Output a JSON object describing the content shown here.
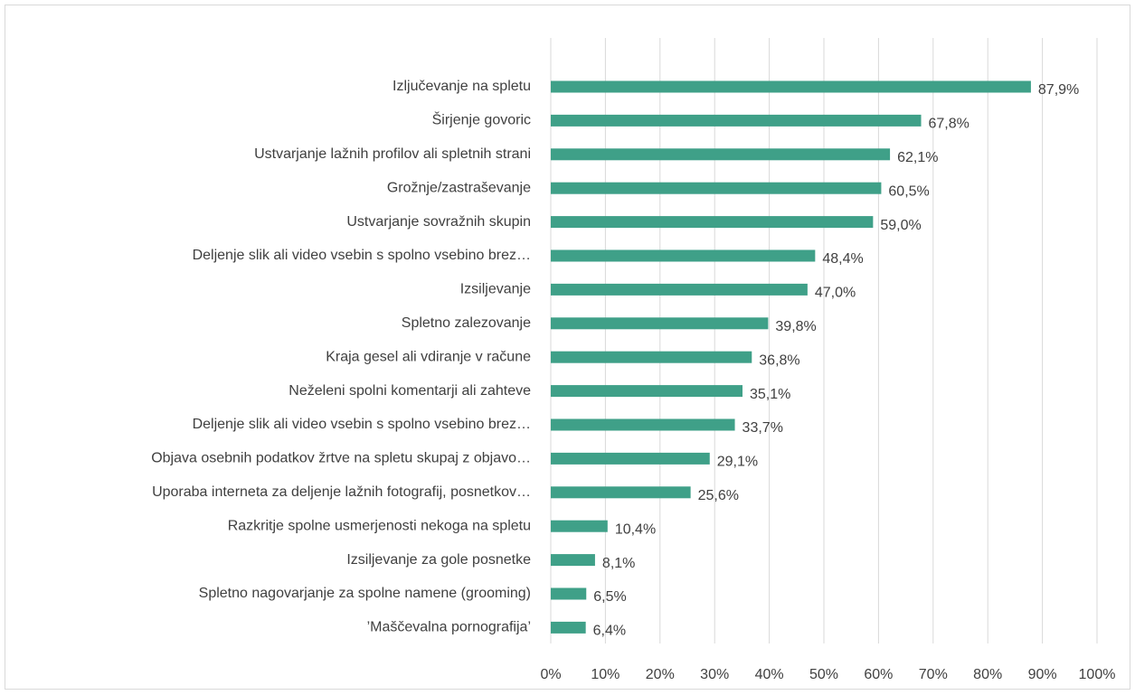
{
  "chart_data": {
    "type": "bar",
    "orientation": "horizontal",
    "color": "#3fa088",
    "grid": true,
    "categories": [
      "Izljučevanje na spletu",
      "Širjenje govoric",
      "Ustvarjanje lažnih profilov ali spletnih strani",
      "Grožnje/zastraševanje",
      "Ustvarjanje sovražnih skupin",
      "Deljenje slik ali video vsebin s spolno vsebino brez…",
      "Izsiljevanje",
      "Spletno zalezovanje",
      "Kraja gesel ali vdiranje v račune",
      "Neželeni spolni komentarji ali zahteve",
      "Deljenje slik ali video vsebin s spolno vsebino brez…",
      "Objava osebnih podatkov žrtve na spletu skupaj z objavo…",
      "Uporaba interneta za deljenje lažnih fotografij, posnetkov…",
      "Razkritje spolne usmerjenosti nekoga na spletu",
      "Izsiljevanje za gole posnetke",
      "Spletno nagovarjanje za spolne namene (grooming)",
      "’Maščevalna pornografija’"
    ],
    "values": [
      87.9,
      67.8,
      62.1,
      60.5,
      59.0,
      48.4,
      47.0,
      39.8,
      36.8,
      35.1,
      33.7,
      29.1,
      25.6,
      10.4,
      8.1,
      6.5,
      6.4
    ],
    "value_labels": [
      "87,9%",
      "67,8%",
      "62,1%",
      "60,5%",
      "59,0%",
      "48,4%",
      "47,0%",
      "39,8%",
      "36,8%",
      "35,1%",
      "33,7%",
      "29,1%",
      "25,6%",
      "10,4%",
      "8,1%",
      "6,5%",
      "6,4%"
    ],
    "xlim": [
      0,
      100
    ],
    "xticks": [
      {
        "value": 0,
        "label": "0%"
      },
      {
        "value": 10,
        "label": "10%"
      },
      {
        "value": 20,
        "label": "20%"
      },
      {
        "value": 30,
        "label": "30%"
      },
      {
        "value": 40,
        "label": "40%"
      },
      {
        "value": 50,
        "label": "50%"
      },
      {
        "value": 60,
        "label": "60%"
      },
      {
        "value": 70,
        "label": "70%"
      },
      {
        "value": 80,
        "label": "80%"
      },
      {
        "value": 90,
        "label": "90%"
      },
      {
        "value": 100,
        "label": "100%"
      }
    ]
  }
}
